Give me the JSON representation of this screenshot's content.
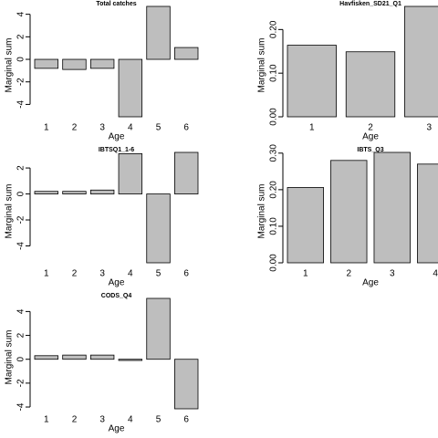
{
  "chart_data": [
    {
      "type": "bar",
      "title": "Total catches",
      "xlabel": "Age",
      "ylabel": "Marginal sum",
      "categories": [
        "1",
        "2",
        "3",
        "4",
        "5",
        "6"
      ],
      "values": [
        -0.8,
        -0.9,
        -0.8,
        -5.1,
        4.7,
        1.05
      ],
      "color": "#bebebe",
      "ylim": [
        -5.1,
        4.7
      ],
      "yticks": [
        -4,
        -2,
        0,
        2,
        4
      ]
    },
    {
      "type": "bar",
      "title": "Havfisken_SD21_Q1",
      "xlabel": "Age",
      "ylabel": "Marginal sum",
      "categories": [
        "1",
        "2",
        "3"
      ],
      "values": [
        0.164,
        0.149,
        0.253
      ],
      "color": "#bebebe",
      "ylim": [
        0,
        0.253
      ],
      "yticks": [
        {
          "value": 0,
          "label": "0.00"
        },
        {
          "value": 0.1,
          "label": "0.10"
        },
        {
          "value": 0.2,
          "label": "0.20"
        }
      ]
    },
    {
      "type": "bar",
      "title": "IBTSQ1_1-6",
      "xlabel": "Age",
      "ylabel": "Marginal sum",
      "categories": [
        "1",
        "2",
        "3",
        "4",
        "5",
        "6"
      ],
      "values": [
        0.2,
        0.2,
        0.3,
        3.1,
        -5.3,
        3.2
      ],
      "color": "#bebebe",
      "ylim": [
        -5.3,
        3.2
      ],
      "yticks": [
        -4,
        -2,
        0,
        2
      ]
    },
    {
      "type": "bar",
      "title": "IBTS_Q3",
      "xlabel": "Age",
      "ylabel": "Marginal sum",
      "categories": [
        "1",
        "2",
        "3",
        "4"
      ],
      "values": [
        0.206,
        0.28,
        0.302,
        0.27
      ],
      "color": "#bebebe",
      "ylim": [
        0,
        0.302
      ],
      "yticks": [
        {
          "value": 0,
          "label": "0.00"
        },
        {
          "value": 0.1,
          "label": "0.10"
        },
        {
          "value": 0.2,
          "label": "0.20"
        },
        {
          "value": 0.3,
          "label": "0.30"
        }
      ]
    },
    {
      "type": "bar",
      "title": "CODS_Q4",
      "xlabel": "Age",
      "ylabel": "Marginal sum",
      "categories": [
        "1",
        "2",
        "3",
        "4",
        "5",
        "6"
      ],
      "values": [
        0.3,
        0.35,
        0.35,
        -0.1,
        5.1,
        -4.15
      ],
      "color": "#bebebe",
      "ylim": [
        -4.15,
        5.1
      ],
      "yticks": [
        -4,
        -2,
        0,
        2,
        4
      ]
    }
  ]
}
